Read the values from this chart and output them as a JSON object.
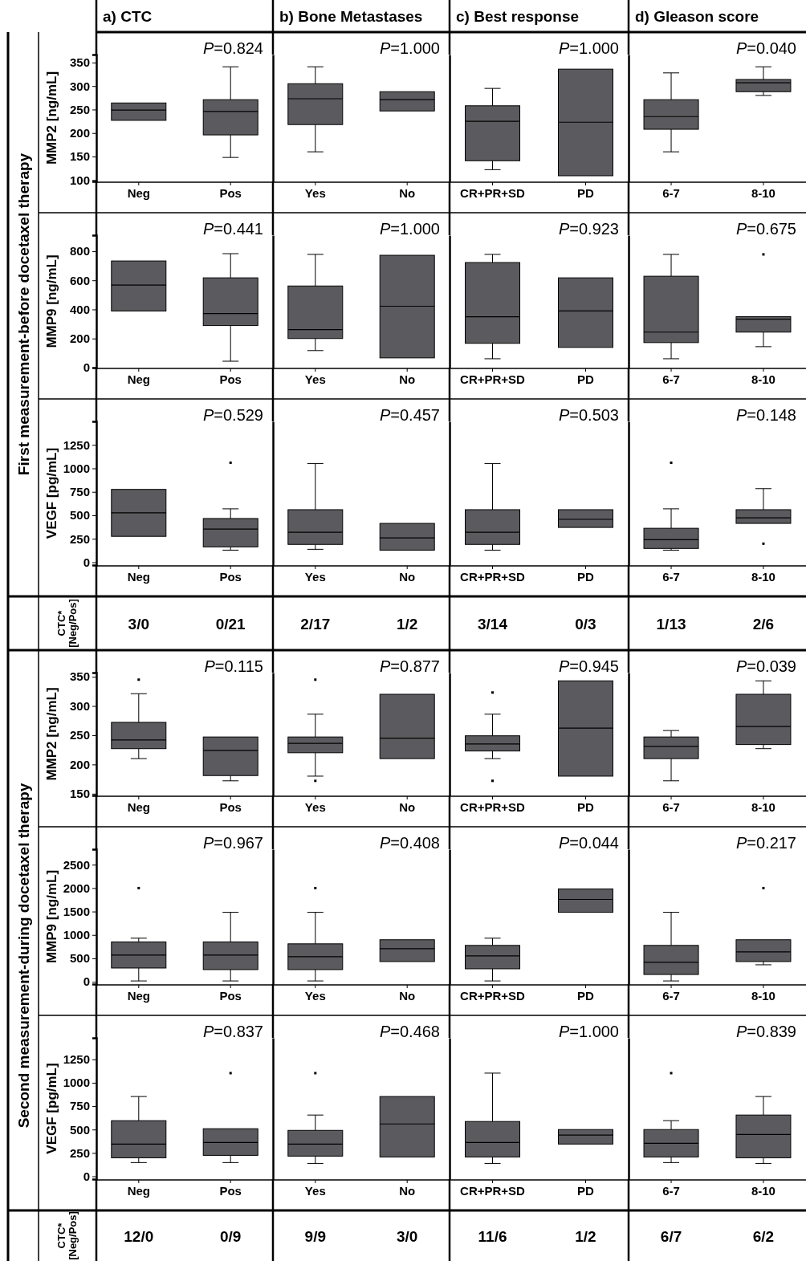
{
  "chart_data": [
    {
      "type": "other",
      "annotations": [
        "a) CTC",
        "b) Bone Metastases",
        "c) Best response",
        "d) Gleason score",
        "First measurement-before docetaxel therapy",
        "Second measurement-during docetaxel therapy"
      ]
    },
    {
      "type": "box",
      "ylabel": "MMP2 [ng/mL]",
      "categories": [
        "Neg",
        "Pos"
      ],
      "ylim": [
        97,
        367
      ],
      "yticks": [
        100,
        150,
        200,
        250,
        300,
        350
      ],
      "annotations": [
        "P=0.824"
      ],
      "series": [
        {
          "color": "#5b5b5f",
          "boxes": [
            {
              "low": 227,
              "q1": 227,
              "median": 249,
              "q3": 264,
              "high": 264
            },
            {
              "low": 148,
              "q1": 196,
              "median": 246,
              "q3": 271,
              "high": 341
            }
          ]
        }
      ]
    },
    {
      "type": "box",
      "categories": [
        "Yes",
        "No"
      ],
      "ylim": [
        97,
        367
      ],
      "tick_labels": "x",
      "annotations": [
        "P=1.000"
      ],
      "series": [
        {
          "color": "#5b5b5f",
          "boxes": [
            {
              "low": 160,
              "q1": 218,
              "median": 273,
              "q3": 305,
              "high": 341
            },
            {
              "low": 247,
              "q1": 247,
              "median": 271,
              "q3": 288,
              "high": 288
            }
          ]
        }
      ]
    },
    {
      "type": "box",
      "categories": [
        "CR+PR+SD",
        "PD"
      ],
      "ylim": [
        97,
        367
      ],
      "tick_labels": "x",
      "annotations": [
        "P=1.000"
      ],
      "series": [
        {
          "color": "#5b5b5f",
          "boxes": [
            {
              "low": 122,
              "q1": 141,
              "median": 225,
              "q3": 258,
              "high": 295
            },
            {
              "low": 109,
              "q1": 109,
              "median": 223,
              "q3": 336,
              "high": 336
            }
          ]
        }
      ]
    },
    {
      "type": "box",
      "categories": [
        "6-7",
        "8-10"
      ],
      "ylim": [
        97,
        367
      ],
      "tick_labels": "x",
      "annotations": [
        "P=0.040"
      ],
      "series": [
        {
          "color": "#5b5b5f",
          "boxes": [
            {
              "low": 160,
              "q1": 208,
              "median": 235,
              "q3": 271,
              "high": 328
            },
            {
              "low": 280,
              "q1": 288,
              "median": 307,
              "q3": 314,
              "high": 341
            }
          ]
        }
      ]
    },
    {
      "type": "box",
      "ylabel": "MMP9 [ng/mL]",
      "categories": [
        "Neg",
        "Pos"
      ],
      "ylim": [
        0,
        910
      ],
      "yticks": [
        0,
        200,
        400,
        600,
        800
      ],
      "annotations": [
        "P=0.441"
      ],
      "series": [
        {
          "color": "#5b5b5f",
          "boxes": [
            {
              "low": 389,
              "q1": 389,
              "median": 567,
              "q3": 733,
              "high": 733
            },
            {
              "low": 44,
              "q1": 289,
              "median": 372,
              "q3": 617,
              "high": 783
            }
          ]
        }
      ]
    },
    {
      "type": "box",
      "categories": [
        "Yes",
        "No"
      ],
      "ylim": [
        0,
        910
      ],
      "tick_labels": "x",
      "annotations": [
        "P=1.000"
      ],
      "series": [
        {
          "color": "#5b5b5f",
          "boxes": [
            {
              "low": 117,
              "q1": 200,
              "median": 261,
              "q3": 561,
              "high": 778
            },
            {
              "low": 67,
              "q1": 67,
              "median": 422,
              "q3": 772,
              "high": 772
            }
          ]
        }
      ]
    },
    {
      "type": "box",
      "categories": [
        "CR+PR+SD",
        "PD"
      ],
      "ylim": [
        0,
        910
      ],
      "tick_labels": "x",
      "annotations": [
        "P=0.923"
      ],
      "series": [
        {
          "color": "#5b5b5f",
          "boxes": [
            {
              "low": 61,
              "q1": 167,
              "median": 350,
              "q3": 722,
              "high": 778
            },
            {
              "low": 139,
              "q1": 139,
              "median": 389,
              "q3": 617,
              "high": 617
            }
          ]
        }
      ]
    },
    {
      "type": "box",
      "categories": [
        "6-7",
        "8-10"
      ],
      "ylim": [
        0,
        910
      ],
      "tick_labels": "x",
      "annotations": [
        "P=0.675"
      ],
      "series": [
        {
          "color": "#5b5b5f",
          "boxes": [
            {
              "low": 61,
              "q1": 172,
              "median": 244,
              "q3": 628,
              "high": 778
            },
            {
              "low": 144,
              "q1": 244,
              "median": 333,
              "q3": 350,
              "high": 350,
              "outliers": [
                778
              ]
            }
          ]
        }
      ]
    },
    {
      "type": "box",
      "ylabel": "VEGF [pg/mL]",
      "categories": [
        "Neg",
        "Pos"
      ],
      "ylim": [
        -30,
        1500
      ],
      "yticks": [
        0,
        250,
        500,
        750,
        1000,
        1250
      ],
      "annotations": [
        "P=0.529"
      ],
      "series": [
        {
          "color": "#5b5b5f",
          "boxes": [
            {
              "low": 276,
              "q1": 276,
              "median": 526,
              "q3": 776,
              "high": 776
            },
            {
              "low": 129,
              "q1": 164,
              "median": 353,
              "q3": 466,
              "high": 569,
              "outliers": [
                1060
              ]
            }
          ]
        }
      ]
    },
    {
      "type": "box",
      "categories": [
        "Yes",
        "No"
      ],
      "ylim": [
        -30,
        1500
      ],
      "tick_labels": "x",
      "annotations": [
        "P=0.457"
      ],
      "series": [
        {
          "color": "#5b5b5f",
          "boxes": [
            {
              "low": 138,
              "q1": 190,
              "median": 319,
              "q3": 560,
              "high": 1052
            },
            {
              "low": 129,
              "q1": 129,
              "median": 259,
              "q3": 414,
              "high": 414
            }
          ]
        }
      ]
    },
    {
      "type": "box",
      "categories": [
        "CR+PR+SD",
        "PD"
      ],
      "ylim": [
        -30,
        1500
      ],
      "tick_labels": "x",
      "annotations": [
        "P=0.503"
      ],
      "series": [
        {
          "color": "#5b5b5f",
          "boxes": [
            {
              "low": 129,
              "q1": 190,
              "median": 319,
              "q3": 560,
              "high": 1052
            },
            {
              "low": 371,
              "q1": 371,
              "median": 457,
              "q3": 560,
              "high": 560
            }
          ]
        }
      ]
    },
    {
      "type": "box",
      "categories": [
        "6-7",
        "8-10"
      ],
      "ylim": [
        -30,
        1500
      ],
      "tick_labels": "x",
      "annotations": [
        "P=0.148"
      ],
      "series": [
        {
          "color": "#5b5b5f",
          "boxes": [
            {
              "low": 129,
              "q1": 147,
              "median": 241,
              "q3": 362,
              "high": 569,
              "outliers": [
                1060
              ]
            },
            {
              "low": 414,
              "q1": 414,
              "median": 474,
              "q3": 560,
              "high": 784,
              "outliers": [
                198
              ]
            }
          ]
        }
      ]
    },
    {
      "type": "other",
      "title": "CTC* [Neg/Pos]",
      "annotations": [
        "3/0",
        "0/21",
        "2/17",
        "1/2",
        "3/14",
        "0/3",
        "1/13",
        "2/6"
      ]
    },
    {
      "type": "box",
      "ylabel": "MMP2 [ng/mL]",
      "categories": [
        "Neg",
        "Pos"
      ],
      "ylim": [
        147,
        357
      ],
      "yticks": [
        150,
        200,
        250,
        300,
        350
      ],
      "annotations": [
        "P=0.115"
      ],
      "series": [
        {
          "color": "#5b5b5f",
          "boxes": [
            {
              "low": 210,
              "q1": 227,
              "median": 242,
              "q3": 272,
              "high": 321,
              "outliers": [
                345
              ]
            },
            {
              "low": 172,
              "q1": 181,
              "median": 224,
              "q3": 247,
              "high": 247
            }
          ]
        }
      ]
    },
    {
      "type": "box",
      "categories": [
        "Yes",
        "No"
      ],
      "ylim": [
        147,
        357
      ],
      "tick_labels": "x",
      "annotations": [
        "P=0.877"
      ],
      "series": [
        {
          "color": "#5b5b5f",
          "boxes": [
            {
              "low": 180,
              "q1": 220,
              "median": 236,
              "q3": 247,
              "high": 286,
              "outliers": [
                345,
                172
              ]
            },
            {
              "low": 210,
              "q1": 210,
              "median": 245,
              "q3": 320,
              "high": 320
            }
          ]
        }
      ]
    },
    {
      "type": "box",
      "categories": [
        "CR+PR+SD",
        "PD"
      ],
      "ylim": [
        147,
        357
      ],
      "tick_labels": "x",
      "annotations": [
        "P=0.945"
      ],
      "series": [
        {
          "color": "#5b5b5f",
          "boxes": [
            {
              "low": 210,
              "q1": 223,
              "median": 235,
              "q3": 249,
              "high": 286,
              "outliers": [
                323,
                172
              ]
            },
            {
              "low": 180,
              "q1": 180,
              "median": 262,
              "q3": 343,
              "high": 343
            }
          ]
        }
      ]
    },
    {
      "type": "box",
      "categories": [
        "6-7",
        "8-10"
      ],
      "ylim": [
        147,
        357
      ],
      "tick_labels": "x",
      "annotations": [
        "P=0.039"
      ],
      "series": [
        {
          "color": "#5b5b5f",
          "boxes": [
            {
              "low": 172,
              "q1": 210,
              "median": 231,
              "q3": 247,
              "high": 258
            },
            {
              "low": 227,
              "q1": 234,
              "median": 265,
              "q3": 320,
              "high": 343
            }
          ]
        }
      ]
    },
    {
      "type": "box",
      "ylabel": "MMP9 [ng/mL]",
      "categories": [
        "Neg",
        "Pos"
      ],
      "ylim": [
        -50,
        2830
      ],
      "yticks": [
        0,
        500,
        1000,
        1500,
        2000,
        2500
      ],
      "annotations": [
        "P=0.967"
      ],
      "series": [
        {
          "color": "#5b5b5f",
          "boxes": [
            {
              "low": 17,
              "q1": 293,
              "median": 569,
              "q3": 850,
              "high": 930,
              "outliers": [
                2000
              ]
            },
            {
              "low": 17,
              "q1": 259,
              "median": 569,
              "q3": 850,
              "high": 1483
            }
          ]
        }
      ]
    },
    {
      "type": "box",
      "categories": [
        "Yes",
        "No"
      ],
      "ylim": [
        -50,
        2830
      ],
      "tick_labels": "x",
      "annotations": [
        "P=0.408"
      ],
      "series": [
        {
          "color": "#5b5b5f",
          "boxes": [
            {
              "low": 17,
              "q1": 259,
              "median": 534,
              "q3": 810,
              "high": 1483,
              "outliers": [
                2000
              ]
            },
            {
              "low": 431,
              "q1": 431,
              "median": 707,
              "q3": 897,
              "high": 897
            }
          ]
        }
      ]
    },
    {
      "type": "box",
      "categories": [
        "CR+PR+SD",
        "PD"
      ],
      "ylim": [
        -50,
        2830
      ],
      "tick_labels": "x",
      "annotations": [
        "P=0.044"
      ],
      "series": [
        {
          "color": "#5b5b5f",
          "boxes": [
            {
              "low": 17,
              "q1": 276,
              "median": 552,
              "q3": 776,
              "high": 930
            },
            {
              "low": 1483,
              "q1": 1483,
              "median": 1759,
              "q3": 1983,
              "high": 1983
            }
          ]
        }
      ]
    },
    {
      "type": "box",
      "categories": [
        "6-7",
        "8-10"
      ],
      "ylim": [
        -50,
        2830
      ],
      "tick_labels": "x",
      "annotations": [
        "P=0.217"
      ],
      "series": [
        {
          "color": "#5b5b5f",
          "boxes": [
            {
              "low": 17,
              "q1": 155,
              "median": 414,
              "q3": 776,
              "high": 1483
            },
            {
              "low": 362,
              "q1": 431,
              "median": 638,
              "q3": 897,
              "high": 897,
              "outliers": [
                2000
              ]
            }
          ]
        }
      ]
    },
    {
      "type": "box",
      "ylabel": "VEGF [pg/mL]",
      "categories": [
        "Neg",
        "Pos"
      ],
      "ylim": [
        -30,
        1480
      ],
      "yticks": [
        0,
        250,
        500,
        750,
        1000,
        1250
      ],
      "annotations": [
        "P=0.837"
      ],
      "series": [
        {
          "color": "#5b5b5f",
          "boxes": [
            {
              "low": 147,
              "q1": 198,
              "median": 345,
              "q3": 595,
              "high": 853
            },
            {
              "low": 147,
              "q1": 224,
              "median": 362,
              "q3": 509,
              "high": 509,
              "outliers": [
                1103
              ]
            }
          ]
        }
      ]
    },
    {
      "type": "box",
      "categories": [
        "Yes",
        "No"
      ],
      "ylim": [
        -30,
        1480
      ],
      "tick_labels": "x",
      "annotations": [
        "P=0.468"
      ],
      "series": [
        {
          "color": "#5b5b5f",
          "boxes": [
            {
              "low": 138,
              "q1": 216,
              "median": 345,
              "q3": 491,
              "high": 655,
              "outliers": [
                1103
              ]
            },
            {
              "low": 207,
              "q1": 207,
              "median": 560,
              "q3": 853,
              "high": 853
            }
          ]
        }
      ]
    },
    {
      "type": "box",
      "categories": [
        "CR+PR+SD",
        "PD"
      ],
      "ylim": [
        -30,
        1480
      ],
      "tick_labels": "x",
      "annotations": [
        "P=1.000"
      ],
      "series": [
        {
          "color": "#5b5b5f",
          "boxes": [
            {
              "low": 138,
              "q1": 207,
              "median": 362,
              "q3": 586,
              "high": 1103
            },
            {
              "low": 345,
              "q1": 345,
              "median": 440,
              "q3": 500,
              "high": 500
            }
          ]
        }
      ]
    },
    {
      "type": "box",
      "categories": [
        "6-7",
        "8-10"
      ],
      "ylim": [
        -30,
        1480
      ],
      "tick_labels": "x",
      "annotations": [
        "P=0.839"
      ],
      "series": [
        {
          "color": "#5b5b5f",
          "boxes": [
            {
              "low": 147,
              "q1": 207,
              "median": 353,
              "q3": 500,
              "high": 595,
              "outliers": [
                1103
              ]
            },
            {
              "low": 138,
              "q1": 198,
              "median": 448,
              "q3": 655,
              "high": 853
            }
          ]
        }
      ]
    },
    {
      "type": "other",
      "title": "CTC* [Neg/Pos]",
      "annotations": [
        "12/0",
        "0/9",
        "9/9",
        "3/0",
        "11/6",
        "1/2",
        "6/7",
        "6/2"
      ]
    }
  ]
}
